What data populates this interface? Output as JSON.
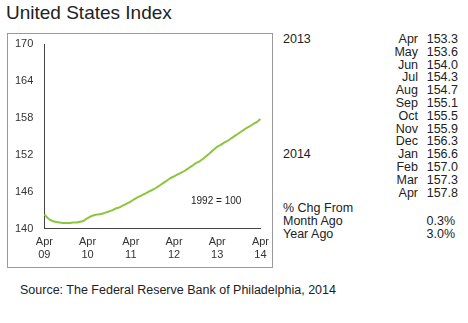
{
  "chart_data": {
    "type": "line",
    "title": "United States Index",
    "annotations": [
      "1992 = 100"
    ],
    "categories": [
      "Apr 09",
      null,
      null,
      null,
      null,
      null,
      null,
      null,
      null,
      null,
      null,
      null,
      "Apr 10",
      null,
      null,
      null,
      null,
      null,
      null,
      null,
      null,
      null,
      null,
      null,
      "Apr 11",
      null,
      null,
      null,
      null,
      null,
      null,
      null,
      null,
      null,
      null,
      null,
      "Apr 12",
      null,
      null,
      null,
      null,
      null,
      null,
      null,
      null,
      null,
      null,
      null,
      "Apr 13",
      null,
      null,
      null,
      null,
      null,
      null,
      null,
      null,
      null,
      null,
      null,
      "Apr 14"
    ],
    "values": [
      142.3,
      141.7,
      141.3,
      141.1,
      141.0,
      140.9,
      140.9,
      140.9,
      141.0,
      141.0,
      141.1,
      141.3,
      141.7,
      142.0,
      142.2,
      142.3,
      142.4,
      142.6,
      142.8,
      143.0,
      143.3,
      143.5,
      143.8,
      144.1,
      144.4,
      144.8,
      145.1,
      145.4,
      145.7,
      146.0,
      146.3,
      146.6,
      147.0,
      147.4,
      147.8,
      148.2,
      148.5,
      148.8,
      149.1,
      149.4,
      149.8,
      150.2,
      150.6,
      150.9,
      151.3,
      151.8,
      152.3,
      152.8,
      153.3,
      153.6,
      154.0,
      154.3,
      154.7,
      155.1,
      155.5,
      155.9,
      156.3,
      156.6,
      157.0,
      157.3,
      157.8
    ],
    "color": "#8cc63e",
    "ylim": [
      140,
      170
    ],
    "yticks": [
      140,
      146,
      152,
      158,
      164,
      170
    ],
    "grid": false
  },
  "table": {
    "rows": [
      {
        "year": "2013",
        "month": "Apr",
        "value": "153.3"
      },
      {
        "month": "May",
        "value": "153.6"
      },
      {
        "month": "Jun",
        "value": "154.0"
      },
      {
        "month": "Jul",
        "value": "154.3"
      },
      {
        "month": "Aug",
        "value": "154.7"
      },
      {
        "month": "Sep",
        "value": "155.1"
      },
      {
        "month": "Oct",
        "value": "155.5"
      },
      {
        "month": "Nov",
        "value": "155.9"
      },
      {
        "month": "Dec",
        "value": "156.3"
      },
      {
        "year": "2014",
        "month": "Jan",
        "value": "156.6"
      },
      {
        "month": "Feb",
        "value": "157.0"
      },
      {
        "month": "Mar",
        "value": "157.3"
      },
      {
        "month": "Apr",
        "value": "157.8"
      }
    ]
  },
  "change": {
    "heading": "% Chg From",
    "rows": [
      {
        "label": "Month Ago",
        "value": "0.3%"
      },
      {
        "label": "Year Ago",
        "value": "3.0%"
      }
    ]
  },
  "source": "Source: The Federal Reserve Bank of Philadelphia, 2014"
}
